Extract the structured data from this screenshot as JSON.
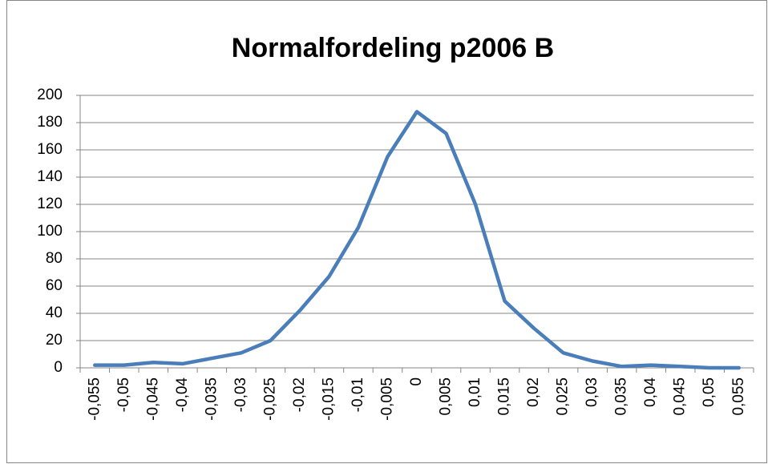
{
  "chart_data": {
    "type": "line",
    "title": "Normalfordeling p2006 B",
    "categories": [
      "-0,055",
      "-0,05",
      "-0,045",
      "-0,04",
      "-0,035",
      "-0,03",
      "-0,025",
      "-0,02",
      "-0,015",
      "-0,01",
      "-0,005",
      "0",
      "0,005",
      "0,01",
      "0,015",
      "0,02",
      "0,025",
      "0,03",
      "0,035",
      "0,04",
      "0,045",
      "0,05",
      "0,055"
    ],
    "values": [
      2,
      2,
      4,
      3,
      7,
      11,
      20,
      42,
      67,
      103,
      155,
      188,
      172,
      120,
      49,
      29,
      11,
      5,
      1,
      2,
      1,
      0,
      0
    ],
    "color": "#4a7ebb",
    "ylim": [
      0,
      200
    ],
    "yticks": [
      0,
      20,
      40,
      60,
      80,
      100,
      120,
      140,
      160,
      180,
      200
    ],
    "grid": true
  }
}
